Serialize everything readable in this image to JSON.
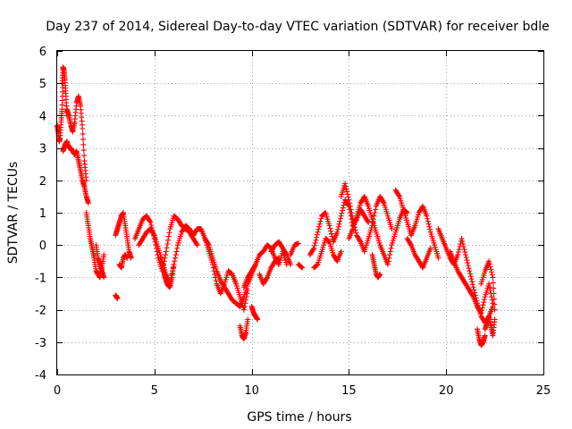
{
  "chart_data": {
    "type": "scatter",
    "title": "Day 237 of 2014, Sidereal Day-to-day VTEC variation (SDTVAR) for receiver bdle",
    "xlabel": "GPS time / hours",
    "ylabel": "SDTVAR / TECUs",
    "xlim": [
      0,
      25
    ],
    "ylim": [
      -4,
      6
    ],
    "xticks": [
      0,
      5,
      10,
      15,
      20,
      25
    ],
    "yticks": [
      -4,
      -3,
      -2,
      -1,
      0,
      1,
      2,
      3,
      4,
      5,
      6
    ],
    "grid": true,
    "marker": "+",
    "color": "#ff0000",
    "series": [
      {
        "name": "SDTVAR",
        "segments": [
          {
            "x": [
              0.0,
              0.05,
              0.1,
              0.15,
              0.2,
              0.25,
              0.3
            ],
            "y": [
              3.7,
              3.5,
              3.2,
              3.3,
              3.8,
              4.2,
              5.0
            ]
          },
          {
            "x": [
              0.25,
              0.3,
              0.35,
              0.4,
              0.45,
              0.5
            ],
            "y": [
              5.0,
              5.5,
              5.4,
              5.1,
              4.6,
              4.0
            ]
          },
          {
            "x": [
              0.3,
              0.4,
              0.5,
              0.6,
              0.7,
              0.8,
              0.9,
              1.0,
              1.1,
              1.2,
              1.3,
              1.4,
              1.5,
              1.6
            ],
            "y": [
              2.9,
              3.1,
              3.2,
              3.0,
              3.0,
              2.9,
              2.8,
              2.9,
              2.6,
              2.3,
              2.0,
              1.8,
              1.5,
              1.3
            ]
          },
          {
            "x": [
              0.5,
              0.6,
              0.7,
              0.8,
              0.9,
              1.0,
              1.1,
              1.2,
              1.3,
              1.4,
              1.5
            ],
            "y": [
              4.2,
              4.0,
              3.7,
              3.5,
              3.8,
              4.4,
              4.6,
              4.3,
              3.6,
              2.6,
              2.0
            ]
          },
          {
            "x": [
              1.5,
              1.6,
              1.7,
              1.8,
              1.9,
              2.0,
              2.1,
              2.2,
              2.3,
              2.4
            ],
            "y": [
              1.0,
              0.6,
              0.2,
              -0.1,
              -0.4,
              -0.8,
              -0.9,
              -1.0,
              -0.7,
              -0.3
            ]
          },
          {
            "x": [
              2.0,
              2.1,
              2.2,
              2.3,
              2.4
            ],
            "y": [
              0.0,
              -0.4,
              -0.6,
              -0.8,
              -1.0
            ]
          },
          {
            "x": [
              3.0,
              3.05,
              3.1
            ],
            "y": [
              -1.55,
              -1.6,
              -1.65
            ]
          },
          {
            "x": [
              3.0,
              3.1,
              3.2,
              3.3,
              3.4,
              3.5,
              3.6,
              3.7,
              3.8
            ],
            "y": [
              0.3,
              0.5,
              0.7,
              0.9,
              1.0,
              0.6,
              0.2,
              -0.2,
              -0.4
            ]
          },
          {
            "x": [
              3.2,
              3.3,
              3.4,
              3.5,
              3.6
            ],
            "y": [
              -0.6,
              -0.7,
              -0.4,
              -0.3,
              -0.4
            ]
          },
          {
            "x": [
              4.0,
              4.2,
              4.4,
              4.6,
              4.8,
              5.0,
              5.2,
              5.4,
              5.6,
              5.8,
              6.0,
              6.2,
              6.4,
              6.6,
              6.8,
              7.0,
              7.2
            ],
            "y": [
              0.2,
              0.5,
              0.8,
              0.9,
              0.7,
              0.2,
              -0.4,
              -0.8,
              -0.2,
              0.5,
              0.9,
              0.8,
              0.6,
              0.5,
              0.4,
              0.2,
              0.0
            ]
          },
          {
            "x": [
              4.2,
              4.4,
              4.6,
              4.8,
              5.0,
              5.2,
              5.4,
              5.6,
              5.8,
              6.0,
              6.2,
              6.4,
              6.6,
              6.8,
              7.0
            ],
            "y": [
              0.0,
              0.2,
              0.4,
              0.5,
              0.3,
              -0.1,
              -0.5,
              -0.9,
              -1.2,
              -0.6,
              0.0,
              0.4,
              0.6,
              0.5,
              0.3
            ]
          },
          {
            "x": [
              5.4,
              5.5,
              5.6,
              5.7,
              5.8,
              5.9,
              6.0
            ],
            "y": [
              -0.6,
              -0.9,
              -1.1,
              -1.25,
              -1.3,
              -1.0,
              -0.6
            ]
          },
          {
            "x": [
              7.0,
              7.2,
              7.4,
              7.6,
              7.8,
              8.0,
              8.2,
              8.4,
              8.6,
              8.8,
              9.0,
              9.2,
              9.4,
              9.6,
              9.8,
              10.0,
              10.2
            ],
            "y": [
              0.3,
              0.5,
              0.5,
              0.2,
              0.0,
              -0.4,
              -0.8,
              -1.1,
              -1.3,
              -1.5,
              -1.7,
              -1.8,
              -1.9,
              -1.6,
              -1.2,
              -0.9,
              -0.6
            ]
          },
          {
            "x": [
              7.6,
              7.8,
              8.0,
              8.2,
              8.4,
              8.6,
              8.8,
              9.0,
              9.2,
              9.4,
              9.6,
              9.8
            ],
            "y": [
              0.2,
              -0.2,
              -0.6,
              -1.2,
              -1.5,
              -1.2,
              -0.8,
              -0.9,
              -1.2,
              -1.6,
              -2.0,
              -1.4
            ]
          },
          {
            "x": [
              9.4,
              9.5,
              9.6,
              9.7,
              9.8
            ],
            "y": [
              -2.5,
              -2.8,
              -2.9,
              -2.7,
              -2.3
            ]
          },
          {
            "x": [
              9.6,
              9.8,
              10.0,
              10.2,
              10.4,
              10.6,
              10.8,
              11.0,
              11.2,
              11.4,
              11.6,
              11.8
            ],
            "y": [
              -1.3,
              -1.0,
              -0.8,
              -0.6,
              -0.3,
              -0.2,
              0.0,
              -0.1,
              -0.4,
              -0.6,
              -0.2,
              -0.6
            ]
          },
          {
            "x": [
              10.0,
              10.1,
              10.2,
              10.3
            ],
            "y": [
              -1.9,
              -2.1,
              -2.2,
              -2.3
            ]
          },
          {
            "x": [
              10.4,
              10.6,
              10.8,
              11.0,
              11.2,
              11.4
            ],
            "y": [
              -0.9,
              -1.2,
              -1.0,
              -0.7,
              -0.5,
              -0.4
            ]
          },
          {
            "x": [
              11.0,
              11.2,
              11.4,
              11.6,
              11.8,
              12.0
            ],
            "y": [
              -0.2,
              0.0,
              0.1,
              -0.1,
              -0.3,
              -0.6
            ]
          },
          {
            "x": [
              12.0,
              12.2,
              12.4
            ],
            "y": [
              -0.3,
              0.0,
              0.05
            ]
          },
          {
            "x": [
              12.4,
              12.6
            ],
            "y": [
              -0.6,
              -0.7
            ]
          },
          {
            "x": [
              13.0,
              13.2,
              13.4,
              13.6,
              13.8,
              14.0,
              14.2,
              14.4,
              14.6,
              14.8,
              15.0,
              15.2,
              15.4,
              15.6,
              15.8,
              16.0
            ],
            "y": [
              -0.3,
              -0.1,
              0.4,
              0.9,
              1.0,
              0.6,
              0.1,
              0.4,
              0.9,
              1.4,
              1.2,
              0.6,
              0.8,
              1.1,
              0.9,
              0.7
            ]
          },
          {
            "x": [
              13.2,
              13.4,
              13.6,
              13.8,
              14.0,
              14.2,
              14.4,
              14.6
            ],
            "y": [
              -0.7,
              -0.6,
              -0.2,
              0.2,
              0.1,
              -0.3,
              -0.5,
              -0.2
            ]
          },
          {
            "x": [
              14.6,
              14.8,
              15.0,
              15.2,
              15.4,
              15.6,
              15.8,
              16.0,
              16.2,
              16.4,
              16.6,
              16.8,
              17.0,
              17.2
            ],
            "y": [
              1.5,
              1.9,
              1.4,
              0.8,
              0.3,
              0.1,
              -0.2,
              0.2,
              0.6,
              1.2,
              1.5,
              1.3,
              0.9,
              0.5
            ]
          },
          {
            "x": [
              15.0,
              15.2,
              15.4,
              15.6,
              15.8,
              16.0,
              16.2,
              16.4,
              16.6,
              16.8,
              17.0,
              17.2,
              17.4,
              17.6,
              17.8,
              18.0
            ],
            "y": [
              0.2,
              0.5,
              0.9,
              1.3,
              1.5,
              1.2,
              0.8,
              0.4,
              0.0,
              -0.3,
              -0.6,
              0.0,
              0.4,
              0.8,
              1.1,
              1.0
            ]
          },
          {
            "x": [
              16.2,
              16.3,
              16.4,
              16.5,
              16.6
            ],
            "y": [
              -0.3,
              -0.6,
              -0.9,
              -1.0,
              -0.9
            ]
          },
          {
            "x": [
              17.4,
              17.6,
              17.8,
              18.0,
              18.2,
              18.4,
              18.6,
              18.8,
              19.0,
              19.2,
              19.4,
              19.6
            ],
            "y": [
              1.7,
              1.5,
              1.1,
              0.7,
              0.3,
              0.6,
              1.0,
              1.2,
              0.9,
              0.4,
              0.0,
              -0.4
            ]
          },
          {
            "x": [
              18.0,
              18.2,
              18.4,
              18.6,
              18.8,
              19.0,
              19.2
            ],
            "y": [
              0.2,
              0.0,
              -0.3,
              -0.5,
              -0.7,
              -0.4,
              -0.1
            ]
          },
          {
            "x": [
              19.6,
              19.8,
              20.0,
              20.2,
              20.4,
              20.6,
              20.8,
              21.0,
              21.2,
              21.4,
              21.6,
              21.8,
              22.0,
              22.2,
              22.4
            ],
            "y": [
              0.5,
              0.2,
              -0.1,
              -0.4,
              -0.6,
              -0.3,
              0.2,
              -0.3,
              -0.8,
              -1.3,
              -1.8,
              -2.2,
              -2.4,
              -2.2,
              -1.9
            ]
          },
          {
            "x": [
              20.2,
              20.4,
              20.6,
              20.8,
              21.0,
              21.2,
              21.4,
              21.6,
              21.8,
              22.0,
              22.2,
              22.4
            ],
            "y": [
              -0.2,
              -0.5,
              -0.8,
              -1.0,
              -1.2,
              -1.4,
              -1.6,
              -1.9,
              -2.1,
              -1.6,
              -1.2,
              -1.8
            ]
          },
          {
            "x": [
              21.6,
              21.7,
              21.8,
              21.9,
              22.0
            ],
            "y": [
              -2.6,
              -2.9,
              -3.1,
              -3.0,
              -2.8
            ]
          },
          {
            "x": [
              21.8,
              22.0,
              22.2,
              22.4,
              22.5
            ],
            "y": [
              -1.2,
              -0.8,
              -0.5,
              -1.0,
              -2.0
            ]
          },
          {
            "x": [
              22.0,
              22.1,
              22.2,
              22.3,
              22.4,
              22.5
            ],
            "y": [
              -2.6,
              -2.4,
              -2.2,
              -2.5,
              -2.8,
              -2.3
            ]
          }
        ]
      }
    ]
  }
}
